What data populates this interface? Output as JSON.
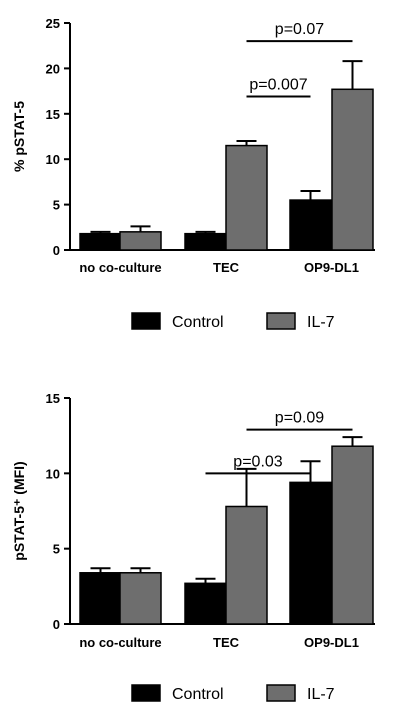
{
  "chart_data": [
    {
      "type": "bar",
      "categories": [
        "no co-culture",
        "TEC",
        "OP9-DL1"
      ],
      "ylabel": "% pSTAT-5",
      "ylim": [
        0,
        25
      ],
      "yticks": [
        "0",
        "5",
        "10",
        "15",
        "20",
        "25"
      ],
      "series": [
        {
          "name": "Control",
          "color": "#000000",
          "values": [
            1.8,
            1.8,
            5.5
          ],
          "errors": [
            0.2,
            0.2,
            1.0
          ]
        },
        {
          "name": "IL-7",
          "color": "#6e6e6e",
          "values": [
            2.0,
            11.5,
            17.7
          ],
          "errors": [
            0.6,
            0.5,
            3.1
          ]
        }
      ],
      "annotations": [
        {
          "text": "p=0.007",
          "from": [
            "TEC",
            "IL-7"
          ],
          "to": [
            "OP9-DL1",
            "Control"
          ],
          "y": 16.9
        },
        {
          "text": "p=0.07",
          "from": [
            "TEC",
            "IL-7"
          ],
          "to": [
            "OP9-DL1",
            "IL-7"
          ],
          "y": 23.0
        }
      ]
    },
    {
      "type": "bar",
      "categories": [
        "no co-culture",
        "TEC",
        "OP9-DL1"
      ],
      "ylabel": "pSTAT-5⁺ (MFI)",
      "ylim": [
        0,
        15
      ],
      "yticks": [
        "0",
        "5",
        "10",
        "15"
      ],
      "series": [
        {
          "name": "Control",
          "color": "#000000",
          "values": [
            3.4,
            2.7,
            9.4
          ],
          "errors": [
            0.3,
            0.3,
            1.4
          ]
        },
        {
          "name": "IL-7",
          "color": "#6e6e6e",
          "values": [
            3.4,
            7.8,
            11.8
          ],
          "errors": [
            0.3,
            2.5,
            0.6
          ]
        }
      ],
      "annotations": [
        {
          "text": "p=0.03",
          "from": [
            "TEC",
            "Control"
          ],
          "to": [
            "OP9-DL1",
            "Control"
          ],
          "y": 10.0
        },
        {
          "text": "p=0.09",
          "from": [
            "TEC",
            "IL-7"
          ],
          "to": [
            "OP9-DL1",
            "IL-7"
          ],
          "y": 12.9
        }
      ]
    }
  ],
  "legend": [
    {
      "label": "Control",
      "color": "#000000"
    },
    {
      "label": "IL-7",
      "color": "#6e6e6e"
    }
  ]
}
